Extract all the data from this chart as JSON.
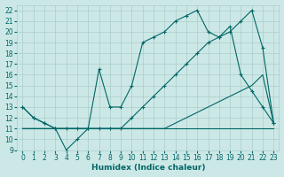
{
  "xlabel": "Humidex (Indice chaleur)",
  "background_color": "#cce8e6",
  "grid_color": "#aaccca",
  "line_color": "#006666",
  "xlim": [
    -0.5,
    23.5
  ],
  "ylim": [
    9,
    22.5
  ],
  "yticks": [
    9,
    10,
    11,
    12,
    13,
    14,
    15,
    16,
    17,
    18,
    19,
    20,
    21,
    22
  ],
  "xticks": [
    0,
    1,
    2,
    3,
    4,
    5,
    6,
    7,
    8,
    9,
    10,
    11,
    12,
    13,
    14,
    15,
    16,
    17,
    18,
    19,
    20,
    21,
    22,
    23
  ],
  "lines": [
    {
      "x": [
        0,
        23
      ],
      "y": [
        11,
        11
      ],
      "marker": false
    },
    {
      "x": [
        0,
        3,
        4,
        5,
        6,
        7,
        8,
        9,
        10,
        11,
        12,
        13,
        14,
        15,
        16,
        17,
        18,
        19,
        20,
        21,
        22,
        23
      ],
      "y": [
        11,
        11,
        11,
        11,
        11,
        11,
        11,
        11,
        11,
        11,
        11,
        11,
        11.5,
        12,
        12.5,
        13,
        13.5,
        14,
        14.5,
        15,
        16,
        11.5
      ],
      "marker": false
    },
    {
      "x": [
        0,
        1,
        2,
        3,
        4,
        5,
        6,
        7,
        8,
        9,
        10,
        11,
        12,
        13,
        14,
        15,
        16,
        17,
        18,
        19,
        20,
        21,
        22,
        23
      ],
      "y": [
        13,
        12,
        11.5,
        11,
        11,
        11,
        11,
        11,
        11,
        11,
        12,
        13,
        14,
        15,
        16,
        17,
        18,
        19,
        19.5,
        20,
        21,
        22,
        18.5,
        11.5
      ],
      "marker": true
    },
    {
      "x": [
        0,
        1,
        2,
        3,
        4,
        5,
        6,
        7,
        8,
        9,
        10,
        11,
        12,
        13,
        14,
        15,
        16,
        17,
        18,
        19,
        20,
        21,
        22,
        23
      ],
      "y": [
        13,
        12,
        11.5,
        11,
        9,
        10,
        11,
        16.5,
        13,
        13,
        15,
        19,
        19.5,
        20,
        21,
        21.5,
        22,
        20,
        19.5,
        20.5,
        16,
        14.5,
        13,
        11.5
      ],
      "marker": true
    }
  ]
}
